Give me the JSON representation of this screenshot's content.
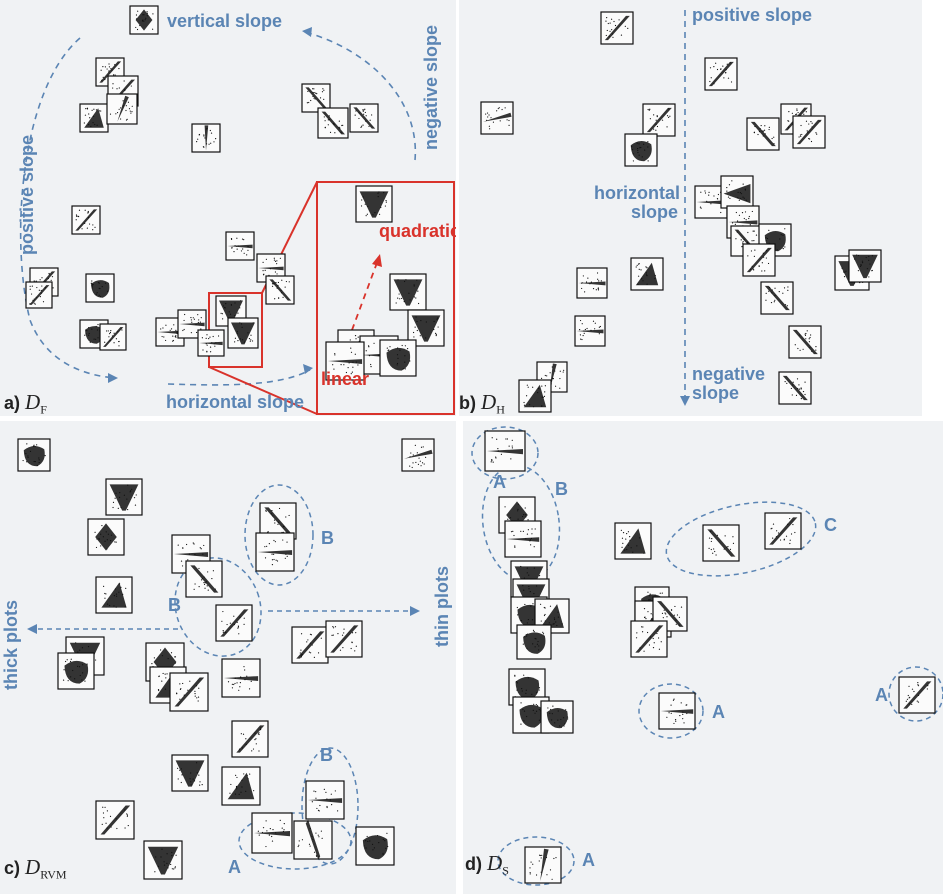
{
  "panels": {
    "a": {
      "letter": "a)",
      "symbol": "D",
      "sub": "F",
      "labels": {
        "vertical": "vertical slope",
        "negative": "negative slope",
        "positive": "positive slope",
        "horizontal": "horizontal slope",
        "quadratic": "quadratic",
        "linear": "linear"
      }
    },
    "b": {
      "letter": "b)",
      "symbol": "D",
      "sub": "H",
      "labels": {
        "positive": "positive slope",
        "horizontal": "horizontal slope",
        "negative": "negative slope"
      }
    },
    "c": {
      "letter": "c)",
      "symbol": "D",
      "sub": "RVM",
      "labels": {
        "thick": "thick plots",
        "thin": "thin plots",
        "b1": "B",
        "b2": "B",
        "b3": "B",
        "a1": "A"
      }
    },
    "d": {
      "letter": "d)",
      "symbol": "D",
      "sub": "S",
      "labels": {
        "a1": "A",
        "b1": "B",
        "c1": "C",
        "a2": "A",
        "a3": "A",
        "a4": "A"
      }
    }
  },
  "colors": {
    "panel_bg": "#f0f2f4",
    "annotation_blue": "#5b85b4",
    "annotation_red": "#d9332b",
    "ink": "#111111"
  },
  "thumbnail_shapes": [
    "diamond",
    "blob",
    "funnel",
    "line-up",
    "line-down",
    "wedge",
    "triangle",
    "spike"
  ]
}
